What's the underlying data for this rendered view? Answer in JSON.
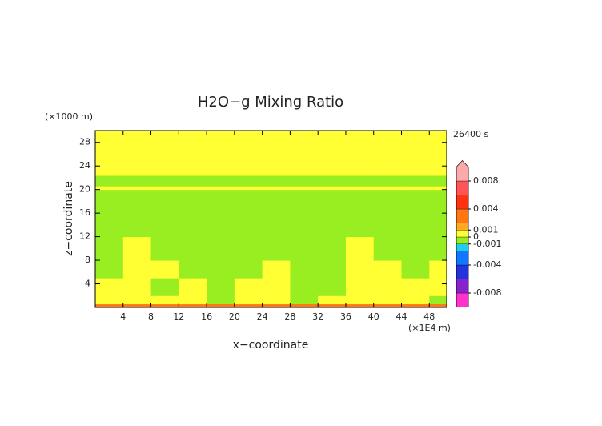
{
  "chart_data": {
    "type": "heatmap",
    "title": "H2O−g Mixing Ratio",
    "time_label": "26400 s",
    "x_label": "x−coordinate",
    "x_unit": "(×1E4 m)",
    "y_label": "z−coordinate",
    "y_unit": "(×1000 m)",
    "xlim": [
      0,
      50.5
    ],
    "ylim": [
      0,
      30
    ],
    "xticks": [
      4,
      8,
      12,
      16,
      20,
      24,
      28,
      32,
      36,
      40,
      44,
      48
    ],
    "yticks": [
      4,
      8,
      12,
      16,
      20,
      24,
      28
    ],
    "x_edges": [
      0,
      4,
      8,
      12,
      16,
      20,
      24,
      28,
      32,
      36,
      40,
      44,
      48,
      50.5
    ],
    "y_edges": [
      0,
      0.6,
      2,
      5,
      8,
      12,
      20,
      20.6,
      22.4,
      30
    ],
    "values": [
      [
        0.0025,
        0.0025,
        0.0025,
        0.0025,
        0.0025,
        0.0025,
        0.0025,
        0.0025,
        0.0025,
        0.0025,
        0.0025,
        0.0025,
        0.0025
      ],
      [
        0.0005,
        0.0005,
        0.0005,
        0.0005,
        -0.0005,
        0.0005,
        0.0005,
        -0.0005,
        0.0005,
        0.0005,
        0.0005,
        0.0005,
        -0.0005
      ],
      [
        0.0005,
        0.0005,
        -0.0005,
        0.0005,
        -0.0005,
        0.0005,
        0.0005,
        -0.0005,
        -0.0005,
        0.0005,
        0.0005,
        0.0005,
        0.0005
      ],
      [
        -0.0005,
        0.0005,
        0.0005,
        -0.0005,
        -0.0005,
        -0.0005,
        0.0005,
        -0.0005,
        -0.0005,
        0.0005,
        0.0005,
        -0.0005,
        0.0005
      ],
      [
        -0.0005,
        0.0005,
        -0.0005,
        -0.0005,
        -0.0005,
        -0.0005,
        -0.0005,
        -0.0005,
        -0.0005,
        0.0005,
        -0.0005,
        -0.0005,
        -0.0005
      ],
      [
        -0.0005,
        -0.0005,
        -0.0005,
        -0.0005,
        -0.0005,
        -0.0005,
        -0.0005,
        -0.0005,
        -0.0005,
        -0.0005,
        -0.0005,
        -0.0005,
        -0.0005
      ],
      [
        0.0005,
        0.0005,
        0.0005,
        0.0005,
        0.0005,
        0.0005,
        0.0005,
        0.0005,
        0.0005,
        0.0005,
        0.0005,
        0.0005,
        0.0005
      ],
      [
        -0.0005,
        -0.0005,
        -0.0005,
        -0.0005,
        -0.0005,
        -0.0005,
        -0.0005,
        -0.0005,
        -0.0005,
        -0.0005,
        -0.0005,
        -0.0005,
        -0.0005
      ],
      [
        0.0005,
        0.0005,
        0.0005,
        0.0005,
        0.0005,
        0.0005,
        0.0005,
        0.0005,
        0.0005,
        0.0005,
        0.0005,
        0.0005,
        0.0005
      ]
    ],
    "clim": [
      -0.01,
      0.01
    ],
    "levels": [
      -0.01,
      -0.008,
      -0.006,
      -0.004,
      -0.002,
      -0.001,
      0,
      0.001,
      0.002,
      0.004,
      0.006,
      0.008,
      0.01
    ],
    "colors": [
      "#ff33cc",
      "#8822cc",
      "#2233dd",
      "#1177ff",
      "#22ccee",
      "#99ee22",
      "#ffff33",
      "#ffaa22",
      "#ff7711",
      "#ff3311",
      "#ff5555",
      "#ffaaaa"
    ],
    "cticks": [
      0.008,
      0.004,
      0.001,
      0,
      -0.001,
      -0.004,
      -0.008
    ]
  }
}
